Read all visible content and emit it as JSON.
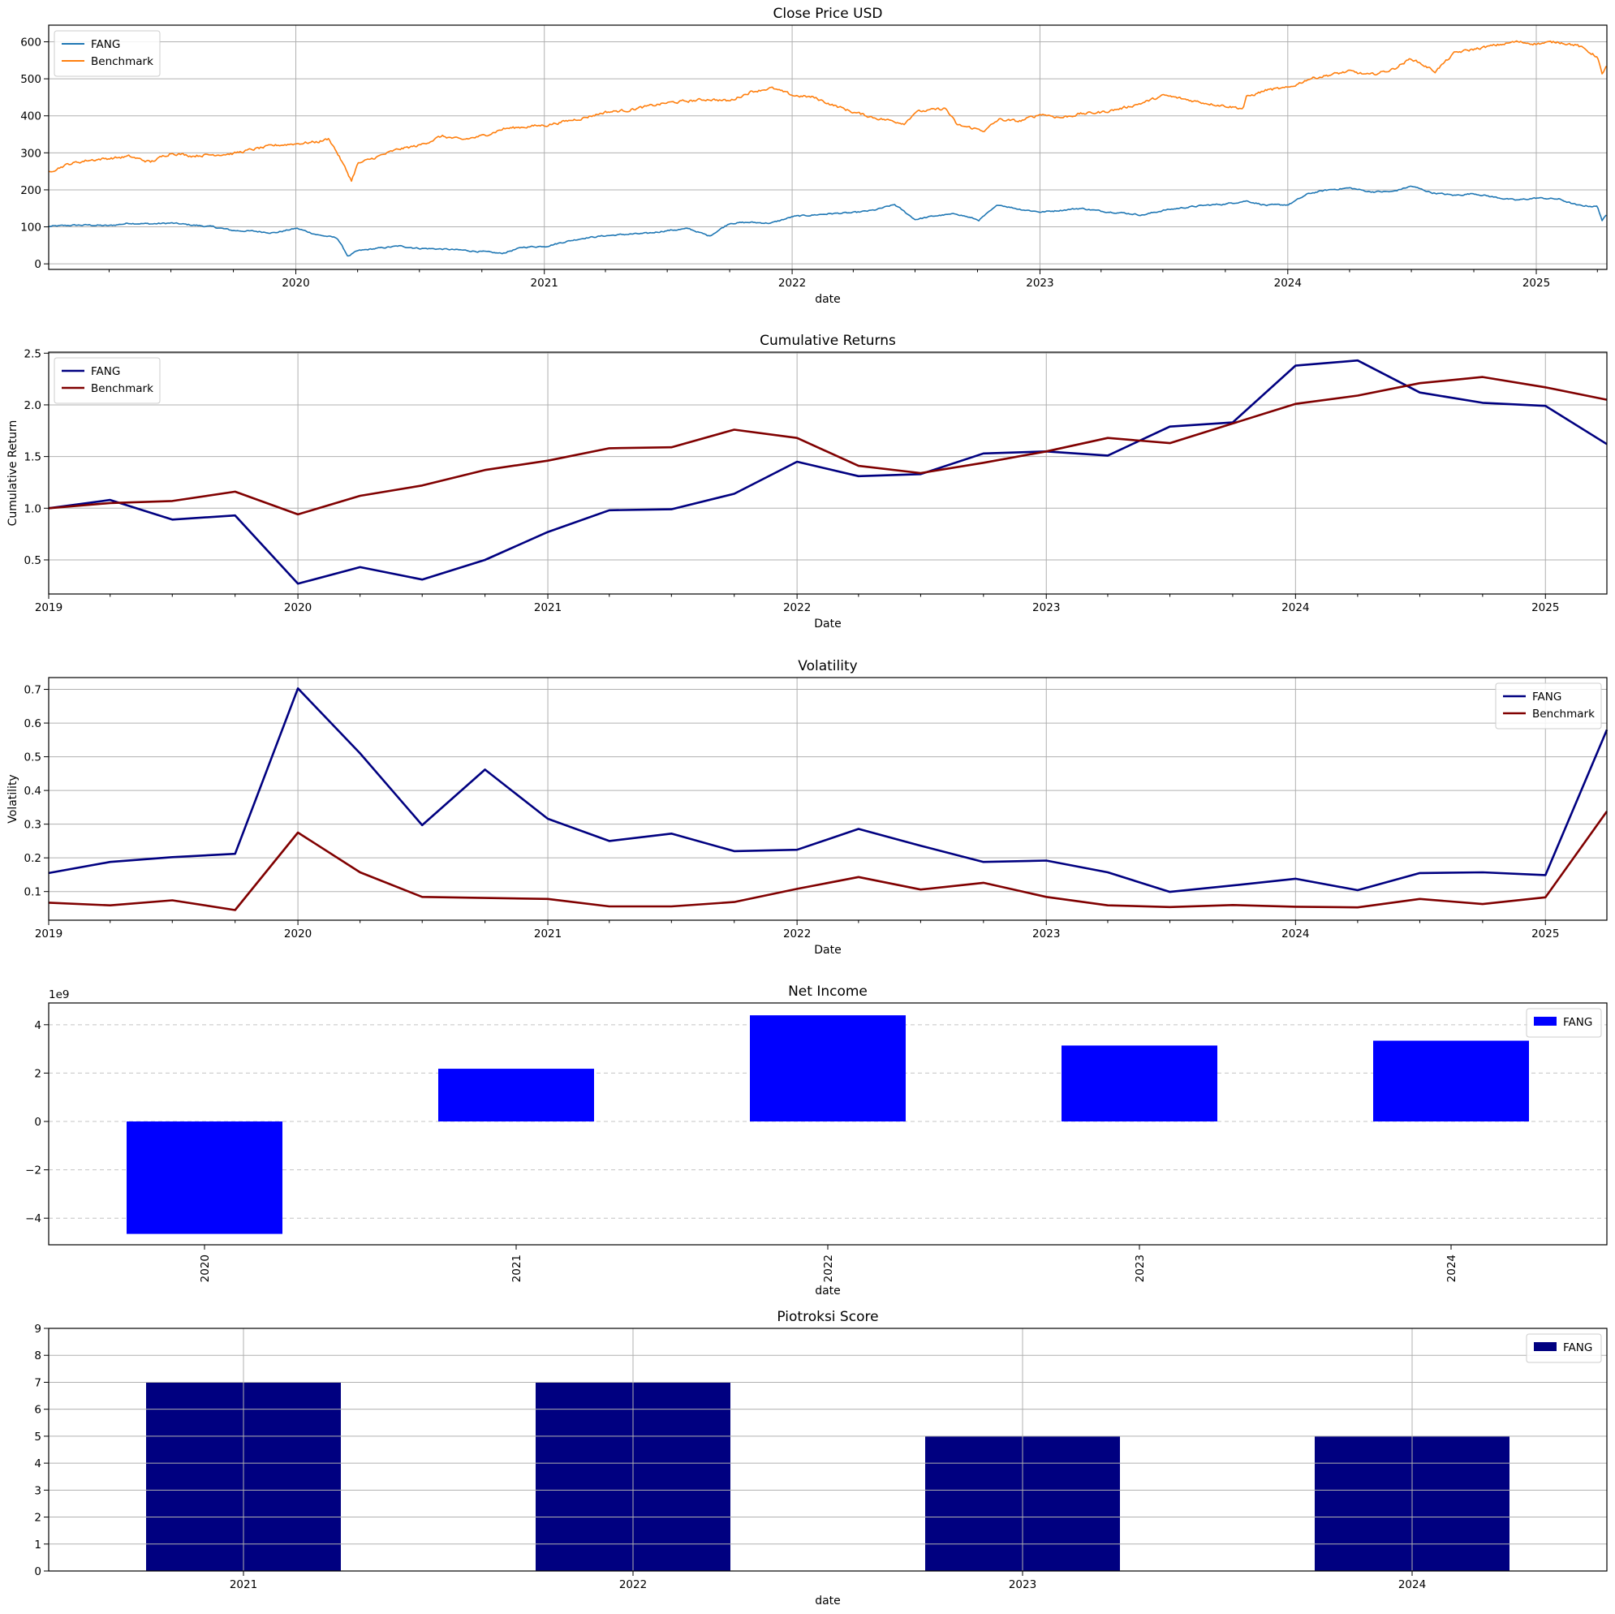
{
  "chart_data": [
    {
      "id": "close",
      "type": "line",
      "title": "Close Price USD",
      "xlabel": "date",
      "ylabel": "",
      "x_axis": "date",
      "xlim": [
        "2019-01-02",
        "2025-04-15"
      ],
      "ylim": [
        -15,
        645
      ],
      "yticks": [
        0,
        100,
        200,
        300,
        400,
        500,
        600
      ],
      "xticks": [
        {
          "x": "2020-01-01",
          "label": "2020"
        },
        {
          "x": "2021-01-01",
          "label": "2021"
        },
        {
          "x": "2022-01-01",
          "label": "2022"
        },
        {
          "x": "2023-01-01",
          "label": "2023"
        },
        {
          "x": "2024-01-01",
          "label": "2024"
        },
        {
          "x": "2025-01-01",
          "label": "2025"
        }
      ],
      "grid": true,
      "legend": "top-left",
      "series": [
        {
          "name": "FANG",
          "color": "#1f77b4",
          "x": [
            "2019-01-02",
            "2019-02-01",
            "2019-03-01",
            "2019-04-01",
            "2019-05-01",
            "2019-06-01",
            "2019-07-01",
            "2019-08-01",
            "2019-09-01",
            "2019-10-01",
            "2019-11-01",
            "2019-12-01",
            "2020-01-02",
            "2020-02-03",
            "2020-03-02",
            "2020-03-18",
            "2020-04-01",
            "2020-05-01",
            "2020-06-01",
            "2020-07-01",
            "2020-08-03",
            "2020-09-01",
            "2020-10-01",
            "2020-10-30",
            "2020-12-01",
            "2021-01-04",
            "2021-02-01",
            "2021-03-01",
            "2021-04-01",
            "2021-05-03",
            "2021-06-01",
            "2021-07-01",
            "2021-08-02",
            "2021-09-01",
            "2021-10-01",
            "2021-11-01",
            "2021-12-01",
            "2022-01-03",
            "2022-02-01",
            "2022-03-01",
            "2022-04-01",
            "2022-05-02",
            "2022-06-01",
            "2022-07-01",
            "2022-08-01",
            "2022-09-01",
            "2022-10-03",
            "2022-11-01",
            "2022-12-01",
            "2023-01-03",
            "2023-02-01",
            "2023-03-01",
            "2023-04-03",
            "2023-05-01",
            "2023-06-01",
            "2023-07-03",
            "2023-08-01",
            "2023-09-01",
            "2023-10-02",
            "2023-11-01",
            "2023-12-01",
            "2024-01-02",
            "2024-02-01",
            "2024-03-01",
            "2024-04-01",
            "2024-05-01",
            "2024-06-03",
            "2024-07-01",
            "2024-08-01",
            "2024-09-03",
            "2024-10-01",
            "2024-11-01",
            "2024-12-02",
            "2025-01-02",
            "2025-02-03",
            "2025-03-03",
            "2025-04-01",
            "2025-04-08",
            "2025-04-15"
          ],
          "y": [
            101,
            104,
            105,
            103,
            110,
            108,
            110,
            105,
            100,
            90,
            88,
            84,
            96,
            78,
            70,
            20,
            35,
            42,
            48,
            42,
            40,
            37,
            33,
            28,
            45,
            48,
            60,
            70,
            76,
            80,
            82,
            90,
            95,
            75,
            110,
            112,
            110,
            128,
            132,
            136,
            138,
            145,
            160,
            120,
            130,
            135,
            118,
            160,
            148,
            140,
            145,
            150,
            142,
            138,
            132,
            145,
            152,
            158,
            162,
            170,
            158,
            160,
            190,
            200,
            205,
            195,
            195,
            210,
            192,
            185,
            190,
            180,
            172,
            178,
            175,
            158,
            155,
            118,
            132
          ]
        },
        {
          "name": "Benchmark",
          "color": "#ff7f0e",
          "x": [
            "2019-01-02",
            "2019-02-01",
            "2019-03-01",
            "2019-04-01",
            "2019-05-01",
            "2019-06-01",
            "2019-07-01",
            "2019-08-01",
            "2019-09-01",
            "2019-10-01",
            "2019-11-01",
            "2019-12-01",
            "2020-01-02",
            "2020-02-03",
            "2020-02-19",
            "2020-03-02",
            "2020-03-23",
            "2020-04-01",
            "2020-05-01",
            "2020-06-01",
            "2020-07-01",
            "2020-08-03",
            "2020-09-01",
            "2020-10-01",
            "2020-11-02",
            "2020-12-01",
            "2021-01-04",
            "2021-02-01",
            "2021-03-01",
            "2021-04-01",
            "2021-05-03",
            "2021-06-01",
            "2021-07-01",
            "2021-08-02",
            "2021-09-01",
            "2021-10-01",
            "2021-11-01",
            "2021-12-01",
            "2022-01-03",
            "2022-02-01",
            "2022-03-01",
            "2022-04-01",
            "2022-05-02",
            "2022-06-16",
            "2022-07-01",
            "2022-08-15",
            "2022-09-01",
            "2022-10-12",
            "2022-11-01",
            "2022-12-01",
            "2023-01-03",
            "2023-02-01",
            "2023-03-01",
            "2023-04-03",
            "2023-05-01",
            "2023-06-01",
            "2023-07-03",
            "2023-08-01",
            "2023-09-01",
            "2023-10-27",
            "2023-11-01",
            "2023-12-01",
            "2024-01-02",
            "2024-02-01",
            "2024-03-01",
            "2024-04-01",
            "2024-05-01",
            "2024-06-03",
            "2024-07-01",
            "2024-08-05",
            "2024-09-03",
            "2024-10-01",
            "2024-11-01",
            "2024-12-02",
            "2025-01-02",
            "2025-02-03",
            "2025-03-03",
            "2025-04-01",
            "2025-04-08",
            "2025-04-15"
          ],
          "y": [
            250,
            270,
            280,
            285,
            290,
            275,
            300,
            292,
            295,
            298,
            310,
            320,
            325,
            330,
            338,
            300,
            225,
            270,
            290,
            310,
            320,
            345,
            335,
            345,
            365,
            370,
            375,
            385,
            395,
            410,
            415,
            425,
            435,
            440,
            445,
            440,
            465,
            475,
            455,
            450,
            430,
            410,
            395,
            380,
            410,
            420,
            375,
            360,
            390,
            385,
            405,
            395,
            405,
            410,
            420,
            435,
            455,
            445,
            435,
            420,
            450,
            470,
            475,
            500,
            510,
            520,
            510,
            525,
            555,
            520,
            570,
            580,
            590,
            600,
            595,
            600,
            590,
            560,
            510,
            540
          ]
        }
      ]
    },
    {
      "id": "cumret",
      "type": "line",
      "title": "Cumulative Returns",
      "xlabel": "Date",
      "ylabel": "Cumulative Return",
      "x_axis": "date",
      "xlim": [
        "2019-01-01",
        "2025-04-01"
      ],
      "ylim": [
        0.17,
        2.51
      ],
      "yticks": [
        0.5,
        1.0,
        1.5,
        2.0,
        2.5
      ],
      "ytick_labels": [
        "0.5",
        "1.0",
        "1.5",
        "2.0",
        "2.5"
      ],
      "xticks": [
        {
          "x": "2019-01-01",
          "label": "2019"
        },
        {
          "x": "2020-01-01",
          "label": "2020"
        },
        {
          "x": "2021-01-01",
          "label": "2021"
        },
        {
          "x": "2022-01-01",
          "label": "2022"
        },
        {
          "x": "2023-01-01",
          "label": "2023"
        },
        {
          "x": "2024-01-01",
          "label": "2024"
        },
        {
          "x": "2025-01-01",
          "label": "2025"
        }
      ],
      "grid": true,
      "legend": "top-left",
      "x": [
        "2019-01-01",
        "2019-04-01",
        "2019-07-01",
        "2019-10-01",
        "2020-01-01",
        "2020-04-01",
        "2020-07-01",
        "2020-10-01",
        "2021-01-01",
        "2021-04-01",
        "2021-07-01",
        "2021-10-01",
        "2022-01-01",
        "2022-04-01",
        "2022-07-01",
        "2022-10-01",
        "2023-01-01",
        "2023-04-01",
        "2023-07-01",
        "2023-10-01",
        "2024-01-01",
        "2024-04-01",
        "2024-07-01",
        "2024-10-01",
        "2025-01-01",
        "2025-04-01"
      ],
      "series": [
        {
          "name": "FANG",
          "color": "#000080",
          "values": [
            1.0,
            1.08,
            0.89,
            0.93,
            0.27,
            0.43,
            0.31,
            0.5,
            0.77,
            0.98,
            0.99,
            1.14,
            1.45,
            1.31,
            1.33,
            1.53,
            1.55,
            1.51,
            1.79,
            1.83,
            2.38,
            2.43,
            2.12,
            2.02,
            1.99,
            1.62
          ]
        },
        {
          "name": "Benchmark",
          "color": "#800000",
          "values": [
            1.0,
            1.05,
            1.07,
            1.16,
            0.94,
            1.12,
            1.22,
            1.37,
            1.46,
            1.58,
            1.59,
            1.76,
            1.68,
            1.41,
            1.34,
            1.44,
            1.55,
            1.68,
            1.63,
            1.82,
            2.01,
            2.09,
            2.21,
            2.27,
            2.17,
            2.05
          ]
        }
      ]
    },
    {
      "id": "vol",
      "type": "line",
      "title": "Volatility",
      "xlabel": "Date",
      "ylabel": "Volatility",
      "x_axis": "date",
      "xlim": [
        "2019-01-01",
        "2025-04-01"
      ],
      "ylim": [
        0.015,
        0.735
      ],
      "yticks": [
        0.1,
        0.2,
        0.3,
        0.4,
        0.5,
        0.6,
        0.7
      ],
      "ytick_labels": [
        "0.1",
        "0.2",
        "0.3",
        "0.4",
        "0.5",
        "0.6",
        "0.7"
      ],
      "xticks": [
        {
          "x": "2019-01-01",
          "label": "2019"
        },
        {
          "x": "2020-01-01",
          "label": "2020"
        },
        {
          "x": "2021-01-01",
          "label": "2021"
        },
        {
          "x": "2022-01-01",
          "label": "2022"
        },
        {
          "x": "2023-01-01",
          "label": "2023"
        },
        {
          "x": "2024-01-01",
          "label": "2024"
        },
        {
          "x": "2025-01-01",
          "label": "2025"
        }
      ],
      "grid": true,
      "legend": "top-right",
      "x": [
        "2019-01-01",
        "2019-04-01",
        "2019-07-01",
        "2019-10-01",
        "2020-01-01",
        "2020-04-01",
        "2020-07-01",
        "2020-10-01",
        "2021-01-01",
        "2021-04-01",
        "2021-07-01",
        "2021-10-01",
        "2022-01-01",
        "2022-04-01",
        "2022-07-01",
        "2022-10-01",
        "2023-01-01",
        "2023-04-01",
        "2023-07-01",
        "2023-10-01",
        "2024-01-01",
        "2024-04-01",
        "2024-07-01",
        "2024-10-01",
        "2025-01-01",
        "2025-04-01"
      ],
      "series": [
        {
          "name": "FANG",
          "color": "#000080",
          "values": [
            0.155,
            0.188,
            0.202,
            0.212,
            0.703,
            0.51,
            0.297,
            0.462,
            0.316,
            0.25,
            0.272,
            0.22,
            0.224,
            0.286,
            0.236,
            0.188,
            0.192,
            0.157,
            0.099,
            0.118,
            0.138,
            0.104,
            0.155,
            0.157,
            0.149,
            0.58
          ]
        },
        {
          "name": "Benchmark",
          "color": "#800000",
          "values": [
            0.067,
            0.059,
            0.074,
            0.045,
            0.275,
            0.157,
            0.084,
            0.081,
            0.078,
            0.056,
            0.056,
            0.069,
            0.108,
            0.143,
            0.106,
            0.126,
            0.084,
            0.059,
            0.054,
            0.06,
            0.055,
            0.053,
            0.078,
            0.063,
            0.083,
            0.338
          ]
        }
      ]
    },
    {
      "id": "netincome",
      "type": "bar",
      "title": "Net Income",
      "xlabel": "date",
      "ylabel": "",
      "offset_label": "1e9",
      "categories": [
        "2020",
        "2021",
        "2022",
        "2023",
        "2024"
      ],
      "ylim": [
        -5.1,
        4.9
      ],
      "yticks": [
        -4,
        -2,
        0,
        2,
        4
      ],
      "ytick_labels": [
        "−4",
        "−2",
        "0",
        "2",
        "4"
      ],
      "grid": "y-dashed",
      "legend": "top-right",
      "series": [
        {
          "name": "FANG",
          "color": "#0000ff",
          "values": [
            -4.65,
            2.18,
            4.39,
            3.14,
            3.34
          ]
        }
      ]
    },
    {
      "id": "piotroski",
      "type": "bar",
      "title": "Piotroksi Score",
      "xlabel": "date",
      "ylabel": "",
      "categories": [
        "2021",
        "2022",
        "2023",
        "2024"
      ],
      "ylim": [
        0,
        9
      ],
      "yticks": [
        0,
        1,
        2,
        3,
        4,
        5,
        6,
        7,
        8,
        9
      ],
      "grid": true,
      "legend": "top-right",
      "series": [
        {
          "name": "FANG",
          "color": "#000080",
          "values": [
            7,
            7,
            5,
            5
          ]
        }
      ]
    }
  ]
}
